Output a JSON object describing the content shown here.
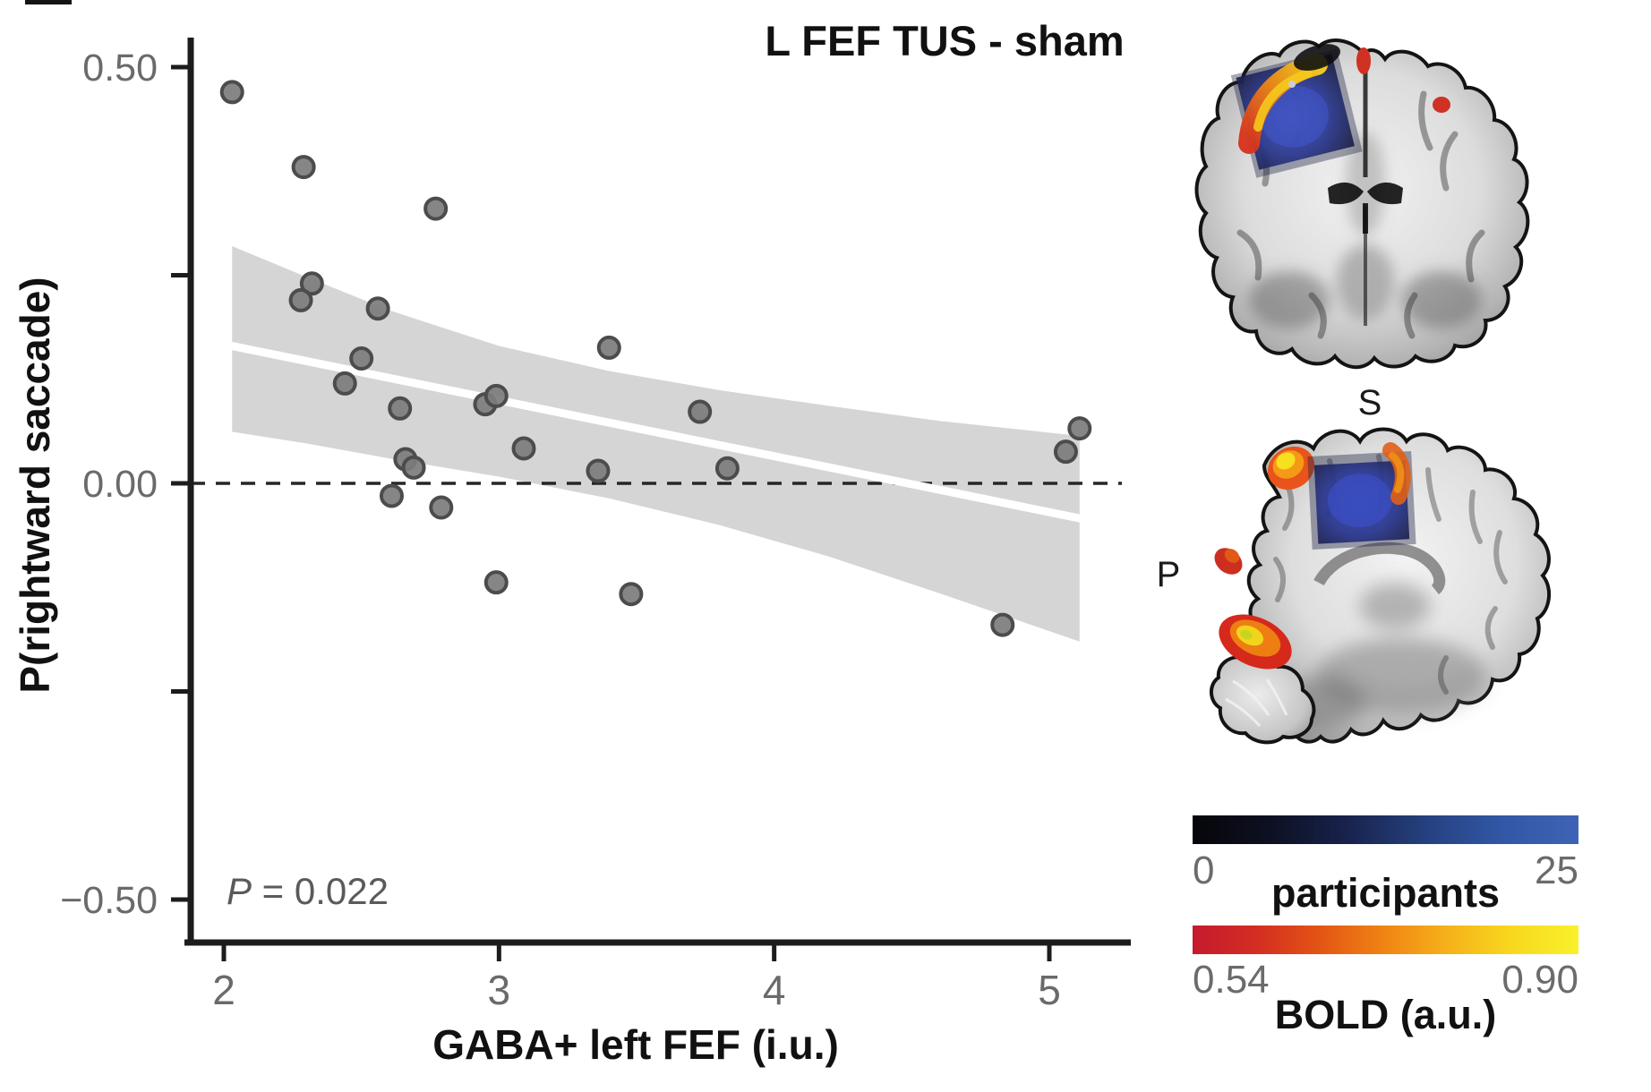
{
  "figure": {
    "title": "L FEF TUS - sham"
  },
  "chart_data": {
    "type": "scatter",
    "title": "L FEF TUS - sham",
    "xlabel": "GABA+ left FEF (i.u.)",
    "ylabel": "P(rightward saccade)",
    "annotation": "P = 0.022",
    "xlim": [
      1.88,
      5.3
    ],
    "ylim": [
      -0.55,
      0.55
    ],
    "grid": false,
    "x_ticks": [
      {
        "value": 2,
        "label": "2"
      },
      {
        "value": 3,
        "label": "3"
      },
      {
        "value": 4,
        "label": "4"
      },
      {
        "value": 5,
        "label": "5"
      }
    ],
    "y_ticks": [
      {
        "value": 0.5,
        "label": "0.50"
      },
      {
        "value": 0.25,
        "label": ""
      },
      {
        "value": 0.0,
        "label": "0.00"
      },
      {
        "value": -0.25,
        "label": ""
      },
      {
        "value": -0.5,
        "label": "−0.50"
      }
    ],
    "points": [
      [
        2.03,
        0.47
      ],
      [
        2.29,
        0.38
      ],
      [
        2.77,
        0.33
      ],
      [
        2.32,
        0.24
      ],
      [
        2.28,
        0.22
      ],
      [
        2.56,
        0.21
      ],
      [
        2.5,
        0.15
      ],
      [
        2.44,
        0.12
      ],
      [
        2.64,
        0.09
      ],
      [
        2.95,
        0.095
      ],
      [
        2.99,
        0.105
      ],
      [
        3.4,
        0.163
      ],
      [
        3.09,
        0.042
      ],
      [
        2.66,
        0.029
      ],
      [
        2.69,
        0.019
      ],
      [
        3.36,
        0.015
      ],
      [
        3.73,
        0.086
      ],
      [
        3.83,
        0.018
      ],
      [
        2.61,
        -0.015
      ],
      [
        2.79,
        -0.029
      ],
      [
        2.99,
        -0.119
      ],
      [
        3.48,
        -0.133
      ],
      [
        4.83,
        -0.17
      ],
      [
        5.06,
        0.038
      ],
      [
        5.11,
        0.066
      ]
    ],
    "regression_line": {
      "x1": 2.03,
      "y1": 0.165,
      "x2": 5.11,
      "y2": -0.042
    },
    "ci_band": {
      "x": [
        2.03,
        2.3,
        2.6,
        3.0,
        3.4,
        3.8,
        4.2,
        4.6,
        5.11
      ],
      "upper": [
        0.285,
        0.248,
        0.208,
        0.165,
        0.135,
        0.112,
        0.093,
        0.075,
        0.057
      ],
      "lower": [
        0.062,
        0.048,
        0.03,
        0.008,
        -0.018,
        -0.05,
        -0.088,
        -0.132,
        -0.19
      ]
    },
    "reference_line": {
      "y": 0,
      "style": "dashed"
    },
    "colors": {
      "points": "#7c7c7c",
      "point_border": "#4c4c4c",
      "ci_band": "#d5d5d5",
      "regression_line": "#ffffff",
      "zero_line": "#262626",
      "axis": "#1c1c1c",
      "tick_labels": "#6a6a6a",
      "title": "#111111"
    }
  },
  "brain_panel": {
    "superior_label": "S",
    "posterior_label": "P",
    "tus_target_color": "#2e3f9e",
    "activation_low_color": "#c51a2e",
    "activation_high_color": "#f9f12b",
    "colorbars": [
      {
        "name": "participants",
        "label": "participants",
        "min_label": "0",
        "max_label": "25",
        "stops": [
          "#060609",
          "#0d1022",
          "#18234c",
          "#25407e",
          "#3257a6",
          "#3e63b4"
        ]
      },
      {
        "name": "bold",
        "label": "BOLD (a.u.)",
        "min_label": "0.54",
        "max_label": "0.90",
        "stops": [
          "#c51a2e",
          "#d42d22",
          "#e35613",
          "#f08514",
          "#f6b31a",
          "#f8d91f",
          "#f9f12b"
        ]
      }
    ]
  }
}
